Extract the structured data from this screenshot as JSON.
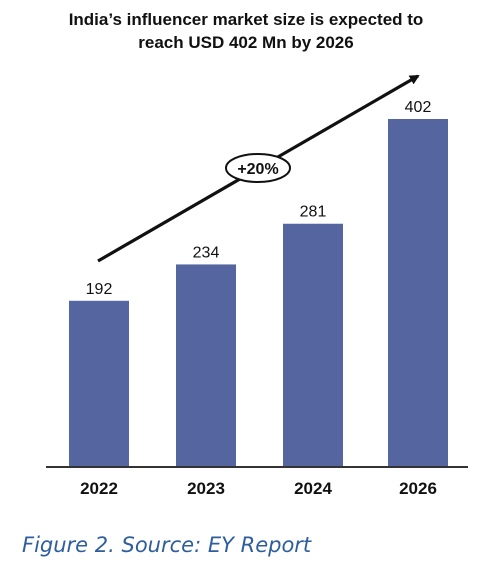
{
  "chart_data": {
    "type": "bar",
    "title_lines": [
      "India’s influencer market size is expected to",
      "reach USD 402 Mn by 2026"
    ],
    "categories": [
      "2022",
      "2023",
      "2024",
      "2026"
    ],
    "values": [
      192,
      234,
      281,
      402
    ],
    "ylim": [
      0,
      402
    ],
    "annotation": "+20%",
    "bar_color": "#5565A0",
    "grid": false,
    "xlabel": "",
    "ylabel": ""
  },
  "caption": {
    "text": "Figure 2. Source: EY Report",
    "color": "#2E5E9E"
  }
}
